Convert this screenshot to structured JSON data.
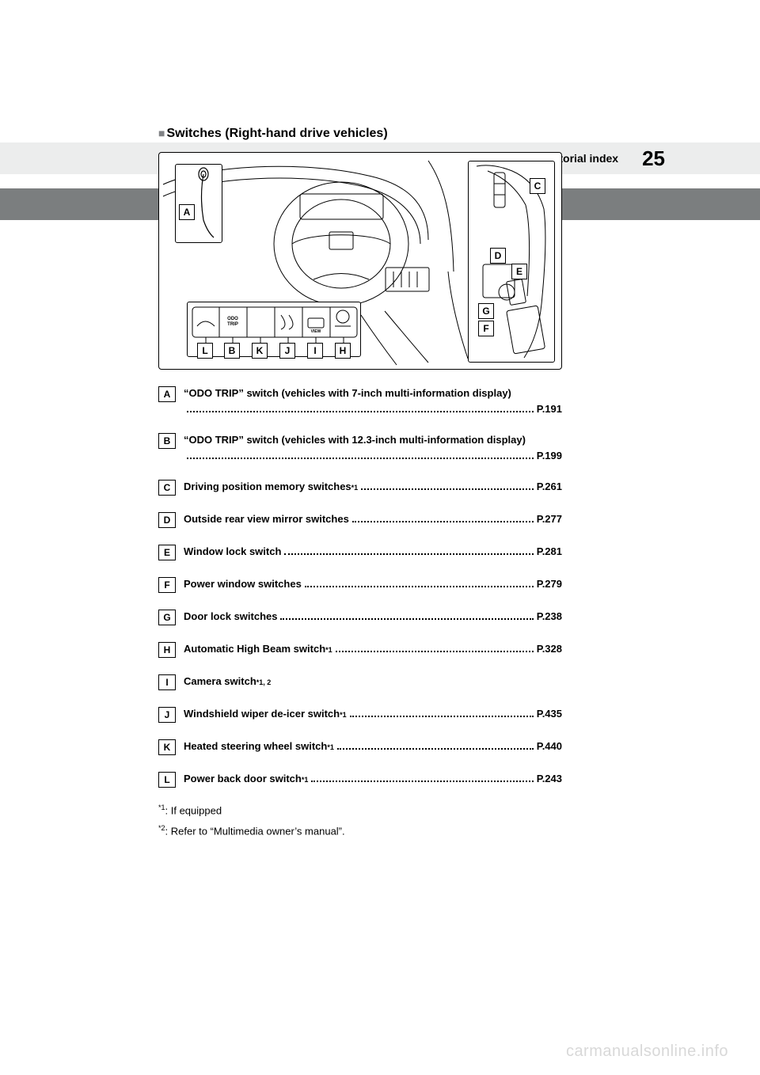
{
  "header": {
    "section_label": "Pictorial index",
    "page_number": "25"
  },
  "section": {
    "marker": "■",
    "title": "Switches (Right-hand drive vehicles)"
  },
  "figure": {
    "callouts": {
      "A": "A",
      "B": "B",
      "C": "C",
      "D": "D",
      "E": "E",
      "F": "F",
      "G": "G",
      "H": "H",
      "I": "I",
      "J": "J",
      "K": "K",
      "L": "L"
    },
    "odo_label": "ODO TRIP",
    "view_label": "VIEW"
  },
  "entries": [
    {
      "label": "A",
      "text": "“ODO TRIP” switch (vehicles with 7-inch multi-information display)",
      "sup": "",
      "page": "P.191",
      "wrap": true
    },
    {
      "label": "B",
      "text": "“ODO TRIP” switch (vehicles with 12.3-inch multi-information display)",
      "sup": "",
      "page": "P.199",
      "wrap": true,
      "hyph": true
    },
    {
      "label": "C",
      "text": "Driving position memory switches",
      "sup": "*1",
      "page": "P.261"
    },
    {
      "label": "D",
      "text": "Outside rear view mirror switches",
      "sup": "",
      "page": "P.277"
    },
    {
      "label": "E",
      "text": "Window lock switch",
      "sup": "",
      "page": "P.281"
    },
    {
      "label": "F",
      "text": "Power window switches",
      "sup": "",
      "page": "P.279"
    },
    {
      "label": "G",
      "text": "Door lock switches",
      "sup": "",
      "page": "P.238"
    },
    {
      "label": "H",
      "text": "Automatic High Beam switch",
      "sup": "*1",
      "page": "P.328"
    },
    {
      "label": "I",
      "text": "Camera switch",
      "sup": "*1, 2",
      "page": ""
    },
    {
      "label": "J",
      "text": "Windshield wiper de-icer switch",
      "sup": "*1",
      "page": "P.435"
    },
    {
      "label": "K",
      "text": "Heated steering wheel switch",
      "sup": "*1",
      "page": "P.440"
    },
    {
      "label": "L",
      "text": "Power back door switch",
      "sup": "*1",
      "page": "P.243"
    }
  ],
  "footnotes": [
    {
      "sup": "*1",
      "text": ": If equipped"
    },
    {
      "sup": "*2",
      "text": ": Refer to “Multimedia owner’s manual”."
    }
  ],
  "watermark": "carmanualsonline.info",
  "colors": {
    "header_bg": "#eceded",
    "band_bg": "#7b7e7f",
    "text": "#000000",
    "watermark": "#d8d8d8",
    "marker": "#808285"
  }
}
